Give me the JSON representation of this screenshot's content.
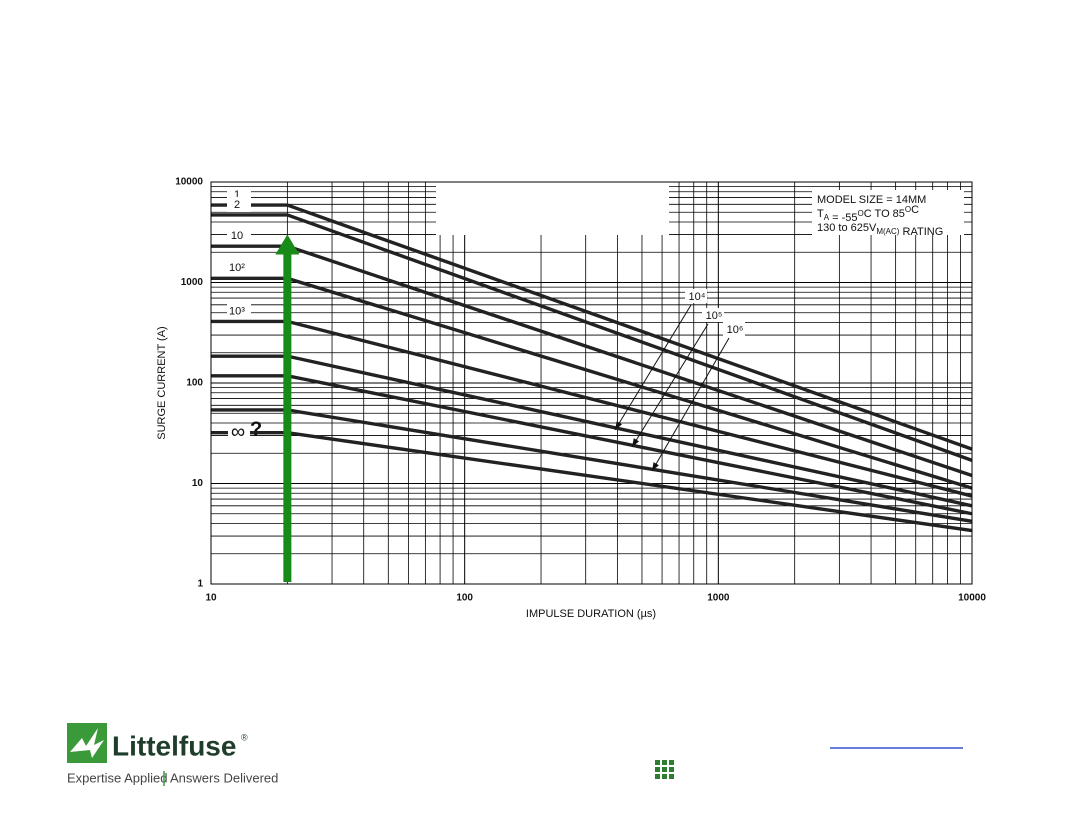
{
  "chart_data": {
    "type": "line",
    "x": [
      10,
      20,
      10000
    ],
    "series": [
      {
        "name": "1",
        "color": "#222222",
        "values": [
          5900,
          5900,
          22
        ]
      },
      {
        "name": "2",
        "color": "#222222",
        "values": [
          4700,
          4700,
          17
        ]
      },
      {
        "name": "10",
        "color": "#222222",
        "values": [
          2300,
          2300,
          12
        ]
      },
      {
        "name": "10²",
        "color": "#222222",
        "values": [
          1100,
          1100,
          9
        ]
      },
      {
        "name": "10³",
        "color": "#222222",
        "values": [
          410,
          410,
          7.5
        ]
      },
      {
        "name": "10⁴",
        "color": "#222222",
        "values": [
          185,
          185,
          6
        ]
      },
      {
        "name": "10⁵",
        "color": "#222222",
        "values": [
          118,
          118,
          5
        ]
      },
      {
        "name": "10⁶",
        "color": "#222222",
        "values": [
          54,
          54,
          4.2
        ]
      },
      {
        "name": "∞",
        "color": "#222222",
        "values": [
          32,
          32,
          3.4
        ]
      }
    ],
    "xlim": [
      10,
      10000
    ],
    "ylim": [
      1,
      10000
    ],
    "xticks": [
      10,
      100,
      1000,
      10000
    ],
    "yticks": [
      1,
      10,
      100,
      1000,
      10000
    ],
    "log_x": true,
    "log_y": true,
    "grid": true,
    "minor_grid": true,
    "xlabel": "IMPULSE DURATION (µs)",
    "ylabel": "SURGE CURRENT (A)",
    "question": "?",
    "note": [
      [
        {
          "text": "MODEL SIZE = 14MM"
        }
      ],
      [
        {
          "text": "T"
        },
        {
          "text": "A",
          "shift": "sub"
        },
        {
          "text": " = -55"
        },
        {
          "text": "O",
          "shift": "sup"
        },
        {
          "text": "C TO 85"
        },
        {
          "text": "O",
          "shift": "sup"
        },
        {
          "text": "C"
        }
      ],
      [
        {
          "text": "130 to 625V"
        },
        {
          "text": "M(AC)",
          "shift": "sub"
        },
        {
          "text": " RATING"
        }
      ]
    ],
    "marker_arrow": {
      "x": 20,
      "from": 1,
      "to": 3000,
      "color": "#178a17"
    }
  },
  "footer": {
    "brand": "Littelfuse",
    "registered": "®",
    "tagline_left": "Expertise Applied",
    "tagline_right": "Answers Delivered"
  }
}
